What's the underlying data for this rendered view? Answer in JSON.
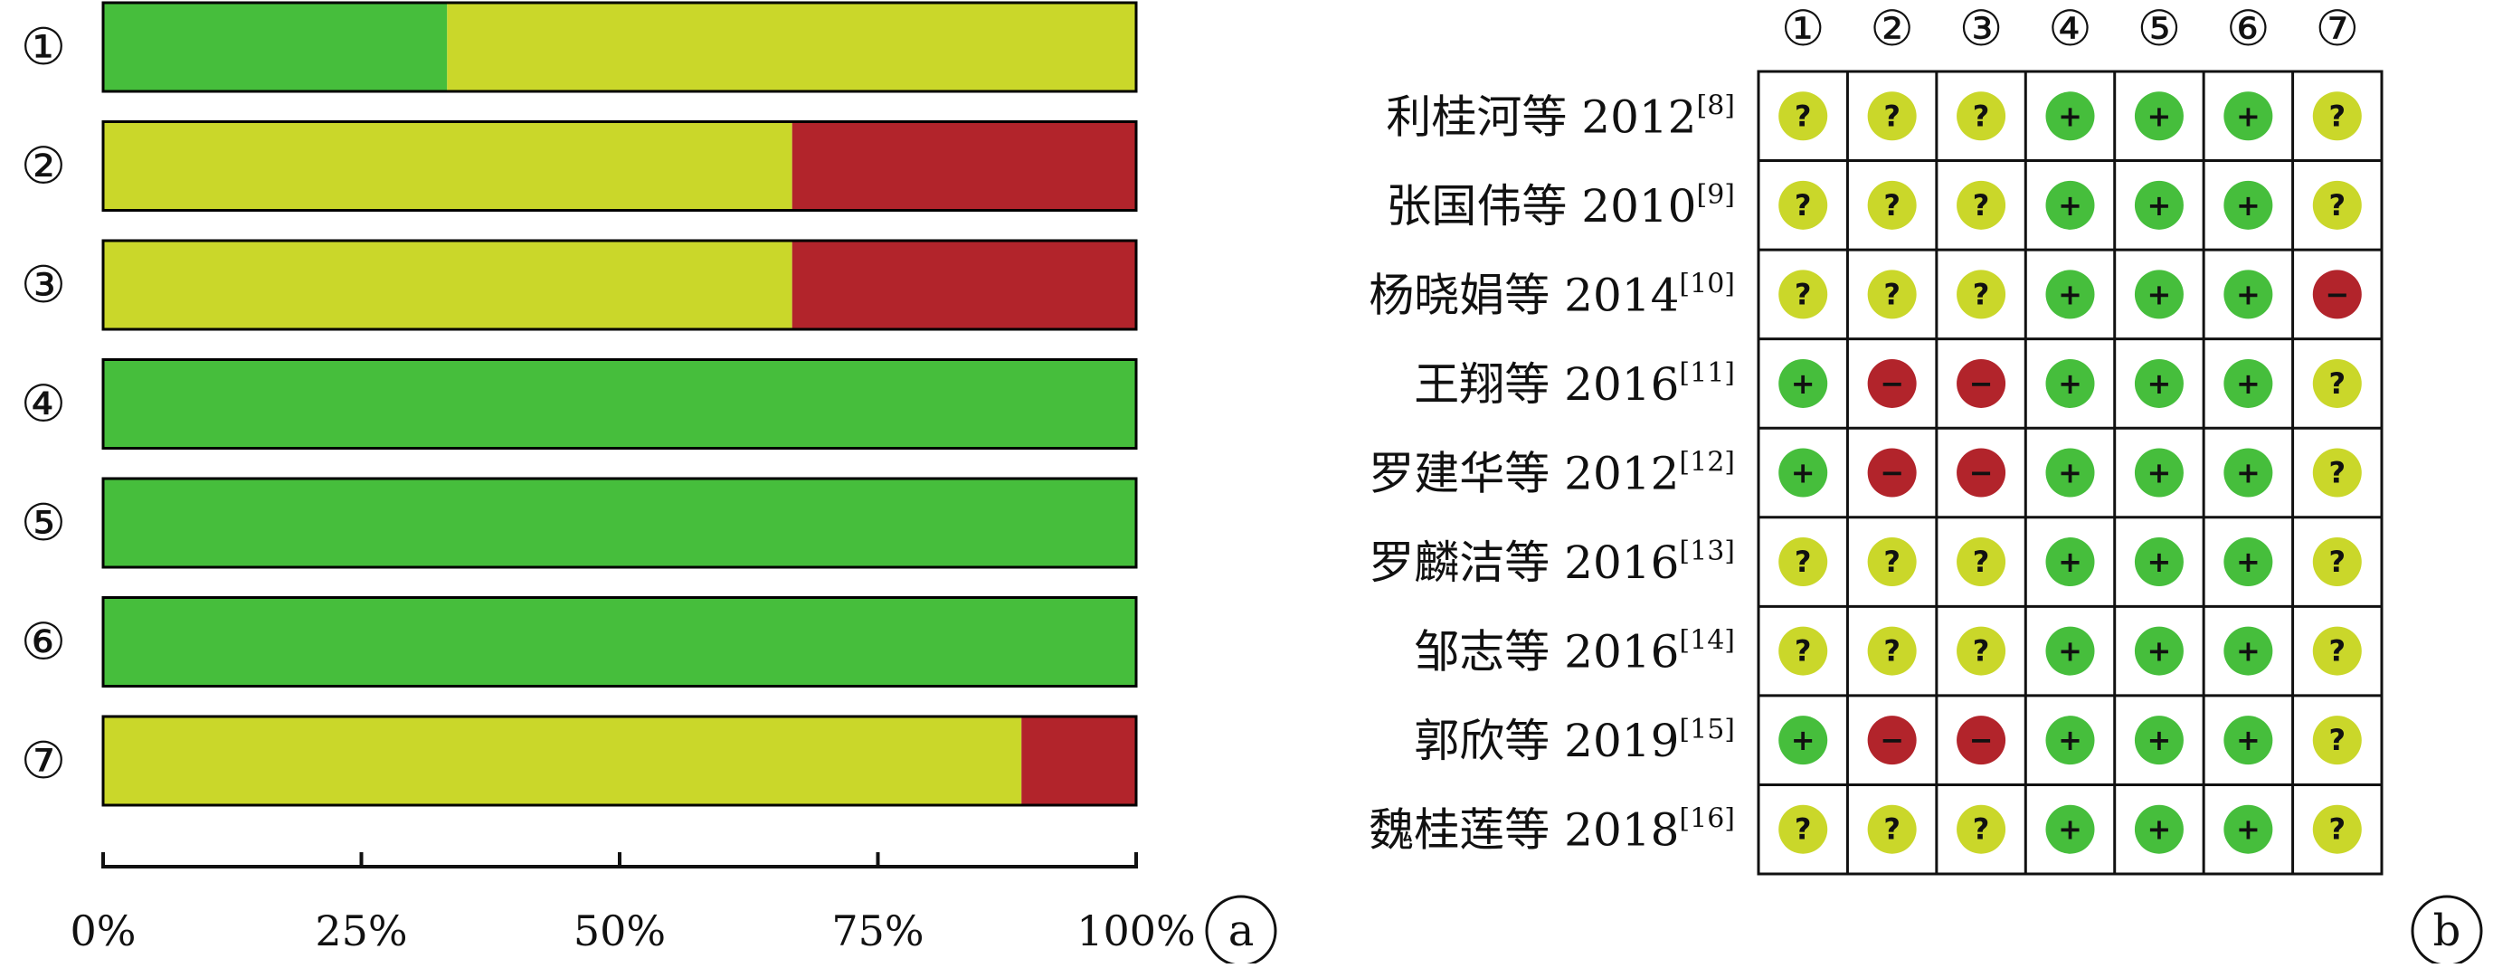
{
  "colors": {
    "low": "#46BE3C",
    "unclear": "#CAD72A",
    "high": "#B2242B",
    "frame": "#000000"
  },
  "icons": {
    "low": "plus-icon",
    "unclear": "question-icon",
    "high": "minus-icon"
  },
  "symbols": {
    "low": "+",
    "unclear": "?",
    "high": "−"
  },
  "chart_data": [
    {
      "type": "bar",
      "orientation": "horizontal-stacked-100",
      "panel_label": "a",
      "categories": [
        "①",
        "②",
        "③",
        "④",
        "⑤",
        "⑥",
        "⑦"
      ],
      "series": [
        {
          "key": "low",
          "values": [
            33.3,
            0,
            0,
            100,
            100,
            100,
            0
          ]
        },
        {
          "key": "unclear",
          "values": [
            66.7,
            66.7,
            66.7,
            0,
            0,
            0,
            88.9
          ]
        },
        {
          "key": "high",
          "values": [
            0,
            33.3,
            33.3,
            0,
            0,
            0,
            11.1
          ]
        }
      ],
      "xlim": [
        0,
        100
      ],
      "xticks": [
        0,
        25,
        50,
        75,
        100
      ],
      "xtick_labels": [
        "0%",
        "25%",
        "50%",
        "75%",
        "100%"
      ],
      "grid": false,
      "legend": "none"
    },
    {
      "type": "table",
      "panel_label": "b",
      "columns": [
        "①",
        "②",
        "③",
        "④",
        "⑤",
        "⑥",
        "⑦"
      ],
      "rows": [
        {
          "study": "利桂河等 2012",
          "ref": "[8]",
          "ratings": [
            "unclear",
            "unclear",
            "unclear",
            "low",
            "low",
            "low",
            "unclear"
          ]
        },
        {
          "study": "张国伟等 2010",
          "ref": "[9]",
          "ratings": [
            "unclear",
            "unclear",
            "unclear",
            "low",
            "low",
            "low",
            "unclear"
          ]
        },
        {
          "study": "杨晓娟等 2014",
          "ref": "[10]",
          "ratings": [
            "unclear",
            "unclear",
            "unclear",
            "low",
            "low",
            "low",
            "high"
          ]
        },
        {
          "study": "王翔等 2016",
          "ref": "[11]",
          "ratings": [
            "low",
            "high",
            "high",
            "low",
            "low",
            "low",
            "unclear"
          ]
        },
        {
          "study": "罗建华等 2012",
          "ref": "[12]",
          "ratings": [
            "low",
            "high",
            "high",
            "low",
            "low",
            "low",
            "unclear"
          ]
        },
        {
          "study": "罗麟洁等 2016",
          "ref": "[13]",
          "ratings": [
            "unclear",
            "unclear",
            "unclear",
            "low",
            "low",
            "low",
            "unclear"
          ]
        },
        {
          "study": "邹志等 2016",
          "ref": "[14]",
          "ratings": [
            "unclear",
            "unclear",
            "unclear",
            "low",
            "low",
            "low",
            "unclear"
          ]
        },
        {
          "study": "郭欣等 2019",
          "ref": "[15]",
          "ratings": [
            "low",
            "high",
            "high",
            "low",
            "low",
            "low",
            "unclear"
          ]
        },
        {
          "study": "魏桂莲等 2018",
          "ref": "[16]",
          "ratings": [
            "unclear",
            "unclear",
            "unclear",
            "low",
            "low",
            "low",
            "unclear"
          ]
        }
      ]
    }
  ]
}
